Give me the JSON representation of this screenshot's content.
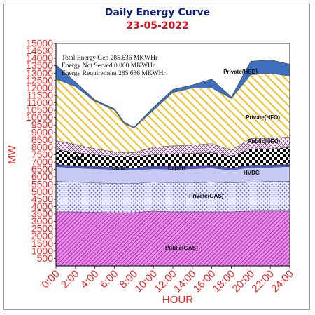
{
  "chart_data": {
    "type": "area",
    "title": "Daily Energy Curve",
    "subtitle": "23-05-2022",
    "xlabel": "HOUR",
    "ylabel": "MW",
    "x": [
      0,
      2,
      4,
      6,
      7,
      8,
      10,
      12,
      14,
      16,
      18,
      20,
      22,
      24
    ],
    "x_ticks": [
      "0:00",
      "2:00",
      "4:00",
      "6:00",
      "8:00",
      "10:00",
      "12:00",
      "14:00",
      "16:00",
      "18:00",
      "20:00",
      "22:00",
      "24:00"
    ],
    "y_ticks": [
      500,
      1000,
      1500,
      2000,
      2500,
      3000,
      3500,
      4000,
      4500,
      5000,
      5500,
      6000,
      6500,
      7000,
      7500,
      8000,
      8500,
      9000,
      9500,
      10000,
      10500,
      11000,
      11500,
      12000,
      12500,
      13000,
      13500,
      14000,
      14500,
      15000
    ],
    "ylim": [
      0,
      15000
    ],
    "xlim": [
      0,
      24
    ],
    "annotations": [
      "Total Energy Gen 285.636 MKWHr",
      "Energy Not Served  0.000 MKWHr",
      "Energy Requirement     285.636 MKWHr"
    ],
    "cumulative_tops": {
      "Public(GAS)": [
        3650,
        3650,
        3620,
        3600,
        3600,
        3600,
        3700,
        3650,
        3650,
        3650,
        3650,
        3700,
        3700,
        3700
      ],
      "Private(GAS)": [
        5700,
        5650,
        5600,
        5550,
        5550,
        5550,
        5650,
        5600,
        5600,
        5650,
        5600,
        5650,
        5700,
        5700
      ],
      "HVDC": [
        6700,
        6600,
        6550,
        6500,
        6500,
        6450,
        6550,
        6500,
        6550,
        6600,
        6450,
        6650,
        6650,
        6700
      ],
      "Export": [
        6800,
        6700,
        6650,
        6600,
        6600,
        6550,
        6650,
        6600,
        6650,
        6700,
        6550,
        6750,
        6750,
        6800
      ],
      "Solar": [
        6850,
        6750,
        6700,
        6650,
        6650,
        6600,
        6750,
        6750,
        6750,
        6800,
        6600,
        6800,
        6800,
        6850
      ],
      "COAL": [
        7850,
        7650,
        7500,
        7400,
        7400,
        7400,
        7500,
        7550,
        7600,
        7650,
        7400,
        7900,
        7900,
        8000
      ],
      "Public(HFO)": [
        8450,
        8200,
        7900,
        7700,
        7650,
        7650,
        8000,
        8100,
        8150,
        8250,
        7800,
        8600,
        8600,
        8700
      ],
      "Private(HFO)": [
        12600,
        12100,
        11100,
        10500,
        9600,
        9300,
        10500,
        11700,
        12000,
        12000,
        11300,
        12900,
        13000,
        12800
      ],
      "Private(HSD)": [
        13550,
        12400,
        11200,
        10600,
        9700,
        9350,
        10700,
        11900,
        12200,
        12600,
        11400,
        13800,
        13900,
        13600
      ]
    },
    "series": [
      {
        "name": "Public(GAS)",
        "values": [
          3650,
          3650,
          3620,
          3600,
          3600,
          3600,
          3700,
          3650,
          3650,
          3650,
          3650,
          3700,
          3700,
          3700
        ],
        "color": "#cc33cc"
      },
      {
        "name": "Private(GAS)",
        "values": [
          2050,
          2000,
          1980,
          1950,
          1950,
          1950,
          1950,
          1950,
          1950,
          2000,
          1950,
          1950,
          2000,
          2000
        ],
        "color": "#9999ff"
      },
      {
        "name": "HVDC",
        "values": [
          1000,
          950,
          950,
          950,
          950,
          900,
          900,
          900,
          950,
          950,
          850,
          1000,
          950,
          1000
        ],
        "color": "#ccccff"
      },
      {
        "name": "Export",
        "values": [
          100,
          100,
          100,
          100,
          100,
          100,
          100,
          100,
          100,
          100,
          100,
          100,
          100,
          100
        ],
        "color": "#3366ff"
      },
      {
        "name": "Solar",
        "values": [
          50,
          50,
          50,
          50,
          50,
          50,
          100,
          150,
          100,
          100,
          50,
          50,
          50,
          50
        ],
        "color": "#6f3fbf"
      },
      {
        "name": "COAL",
        "values": [
          1000,
          900,
          800,
          750,
          750,
          800,
          750,
          800,
          850,
          850,
          800,
          1100,
          1100,
          1150
        ],
        "color": "#000000"
      },
      {
        "name": "Public(HFO)",
        "values": [
          600,
          550,
          400,
          300,
          250,
          250,
          500,
          550,
          550,
          600,
          400,
          700,
          700,
          700
        ],
        "color": "#cc3333"
      },
      {
        "name": "Private(HFO)",
        "values": [
          4150,
          3900,
          3200,
          2800,
          1950,
          1650,
          2500,
          3600,
          3850,
          3750,
          3500,
          4300,
          4400,
          4100
        ],
        "color": "#f5c518"
      },
      {
        "name": "Private(HSD)",
        "values": [
          950,
          300,
          100,
          100,
          100,
          50,
          200,
          200,
          200,
          600,
          100,
          900,
          900,
          800
        ],
        "color": "#3f6fbf"
      }
    ],
    "labels": {
      "public_gas": "Public(GAS)",
      "private_gas": "Private(GAS)",
      "hvdc": "HVDC",
      "export": "Export",
      "solar": "Solar",
      "coal": "COAL",
      "public_hfo": "Public(HFO)",
      "private_hfo": "Private(HFO)",
      "private_hsd": "Private(HSD)"
    },
    "grid": false
  }
}
